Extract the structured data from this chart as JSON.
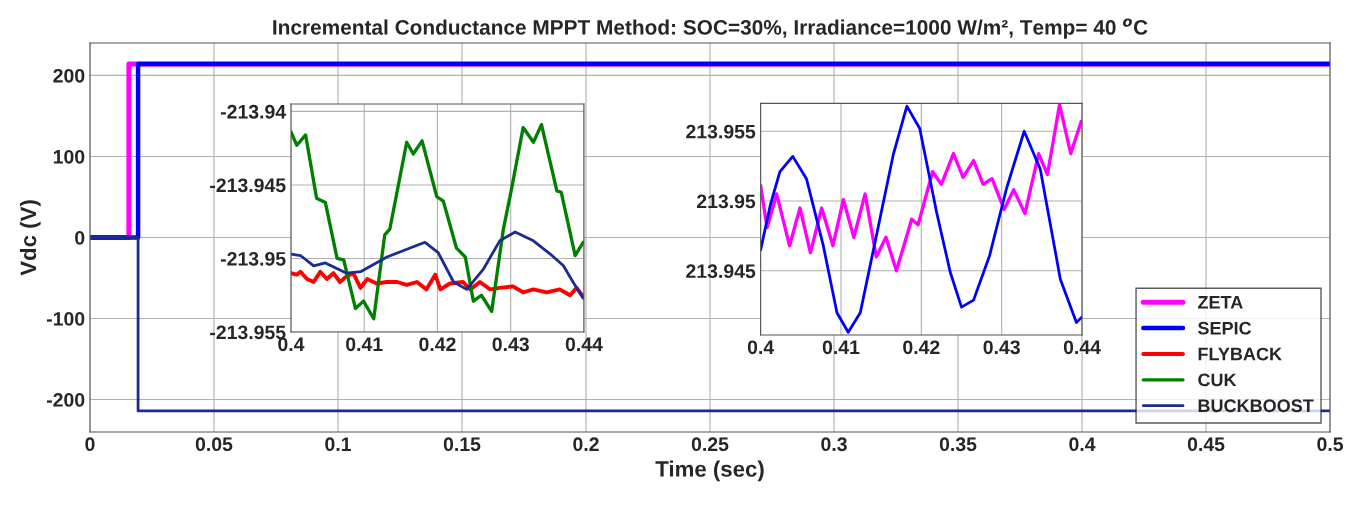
{
  "chart_data": [
    {
      "type": "line",
      "title": "Incremental Conductance MPPT Method: SOC=30%, Irradiance=1000 W/m², Temp= 40 $^{o}$C",
      "xlabel": "Time (sec)",
      "ylabel": "Vdc (V)",
      "xlim": [
        0,
        0.5
      ],
      "xticks": [
        0,
        0.05,
        0.1,
        0.15,
        0.2,
        0.25,
        0.3,
        0.35,
        0.4,
        0.45,
        0.5
      ],
      "ylim": [
        -240,
        240
      ],
      "yticks": [
        -200,
        -100,
        0,
        100,
        200
      ],
      "grid": true,
      "legend": "bottom right",
      "series": [
        {
          "name": "ZETA",
          "color": "#ff00ff",
          "x": [
            0,
            0.0157,
            0.0157,
            0.5
          ],
          "values": [
            0,
            0,
            214,
            214
          ]
        },
        {
          "name": "SEPIC",
          "color": "#0000ff",
          "x": [
            0,
            0.0194,
            0.0194,
            0.5
          ],
          "values": [
            0,
            0,
            214,
            214
          ]
        },
        {
          "name": "FLYBACK",
          "color": "#ff0000",
          "values": [
            null
          ]
        },
        {
          "name": "CUK",
          "color": "#008000",
          "values": [
            null
          ]
        },
        {
          "name": "BUCKBOOST",
          "color": "#1c2a94",
          "x": [
            0,
            0.0194,
            0.0194,
            0.5
          ],
          "values": [
            0,
            0,
            -214,
            -214
          ]
        }
      ]
    },
    {
      "type": "line",
      "xlim": [
        0.4,
        0.44
      ],
      "xticks": [
        0.4,
        0.41,
        0.42,
        0.43,
        0.44
      ],
      "ylim": [
        -213.955,
        -213.9395
      ],
      "yticks": [
        -213.955,
        -213.95,
        -213.945,
        -213.94
      ],
      "grid": true,
      "series": [
        {
          "color": "#ff0000",
          "x": [
            0.4,
            0.4008,
            0.4013,
            0.4022,
            0.4031,
            0.404,
            0.4049,
            0.4058,
            0.4067,
            0.4076,
            0.4085,
            0.4095,
            0.4104,
            0.4117,
            0.4131,
            0.4145,
            0.4158,
            0.4172,
            0.4185,
            0.4197,
            0.4204,
            0.4217,
            0.4235,
            0.4245,
            0.4258,
            0.4272,
            0.4285,
            0.4303,
            0.4317,
            0.4331,
            0.4349,
            0.4367,
            0.4381,
            0.439,
            0.4399
          ],
          "values": [
            -213.951,
            -213.9511,
            -213.9509,
            -213.9514,
            -213.9516,
            -213.9509,
            -213.9514,
            -213.951,
            -213.9516,
            -213.9512,
            -213.951,
            -213.952,
            -213.9514,
            -213.9517,
            -213.9516,
            -213.9516,
            -213.9518,
            -213.9516,
            -213.9521,
            -213.9511,
            -213.9521,
            -213.9517,
            -213.9516,
            -213.9521,
            -213.9516,
            -213.9521,
            -213.952,
            -213.9519,
            -213.9523,
            -213.9521,
            -213.9523,
            -213.9521,
            -213.9525,
            -213.952,
            -213.9526
          ]
        },
        {
          "color": "#008000",
          "x": [
            0.4,
            0.4008,
            0.402,
            0.4035,
            0.4047,
            0.4063,
            0.4072,
            0.4088,
            0.4099,
            0.4113,
            0.4128,
            0.4135,
            0.4158,
            0.4167,
            0.4179,
            0.4199,
            0.4208,
            0.4226,
            0.4238,
            0.4249,
            0.426,
            0.4274,
            0.429,
            0.4301,
            0.4317,
            0.4331,
            0.4342,
            0.4363,
            0.4369,
            0.4388,
            0.4399
          ],
          "values": [
            -213.9414,
            -213.9423,
            -213.9416,
            -213.9459,
            -213.9462,
            -213.95,
            -213.9501,
            -213.9534,
            -213.9529,
            -213.9541,
            -213.9484,
            -213.948,
            -213.9421,
            -213.9429,
            -213.942,
            -213.9458,
            -213.9461,
            -213.9493,
            -213.9499,
            -213.9529,
            -213.9525,
            -213.9536,
            -213.948,
            -213.9453,
            -213.9411,
            -213.9421,
            -213.9409,
            -213.9454,
            -213.9455,
            -213.9498,
            -213.9489
          ]
        },
        {
          "color": "#1c2a94",
          "x": [
            0.4,
            0.4013,
            0.4031,
            0.4047,
            0.4076,
            0.4095,
            0.4131,
            0.4167,
            0.4183,
            0.4201,
            0.4222,
            0.424,
            0.4263,
            0.4285,
            0.4306,
            0.4331,
            0.4354,
            0.4372,
            0.4385,
            0.4399
          ],
          "values": [
            -213.9497,
            -213.9498,
            -213.9505,
            -213.9503,
            -213.951,
            -213.9509,
            -213.9499,
            -213.9492,
            -213.9489,
            -213.9496,
            -213.9516,
            -213.9521,
            -213.9507,
            -213.9488,
            -213.9482,
            -213.9488,
            -213.9497,
            -213.9505,
            -213.9516,
            -213.9527
          ]
        }
      ]
    },
    {
      "type": "line",
      "xlim": [
        0.4,
        0.44
      ],
      "xticks": [
        0.4,
        0.41,
        0.42,
        0.43,
        0.44
      ],
      "ylim": [
        213.9404,
        213.957
      ],
      "yticks": [
        213.945,
        213.95,
        213.955
      ],
      "grid": true,
      "series": [
        {
          "color": "#ff00ff",
          "x": [
            0.4,
            0.4008,
            0.402,
            0.4036,
            0.4049,
            0.4062,
            0.4076,
            0.409,
            0.4103,
            0.4116,
            0.413,
            0.4144,
            0.4156,
            0.4169,
            0.4188,
            0.4196,
            0.4214,
            0.4225,
            0.424,
            0.4252,
            0.4265,
            0.4277,
            0.4288,
            0.4303,
            0.4315,
            0.4329,
            0.4346,
            0.4357,
            0.4372,
            0.4386,
            0.4399
          ],
          "values": [
            213.9511,
            213.9481,
            213.9505,
            213.9468,
            213.9495,
            213.9463,
            213.9495,
            213.9468,
            213.9501,
            213.9474,
            213.9505,
            213.946,
            213.9474,
            213.945,
            213.9487,
            213.9483,
            213.9521,
            213.9512,
            213.9534,
            213.9517,
            213.9529,
            213.9512,
            213.9516,
            213.9494,
            213.9508,
            213.9491,
            213.9534,
            213.9519,
            213.9569,
            213.9534,
            213.9557
          ]
        },
        {
          "color": "#0000ff",
          "x": [
            0.4,
            0.4012,
            0.4024,
            0.404,
            0.4057,
            0.4078,
            0.4095,
            0.4109,
            0.4124,
            0.4144,
            0.4165,
            0.4182,
            0.4198,
            0.4219,
            0.4236,
            0.425,
            0.4265,
            0.4285,
            0.4306,
            0.4328,
            0.4348,
            0.4373,
            0.4393,
            0.44
          ],
          "values": [
            213.9465,
            213.9497,
            213.9521,
            213.9532,
            213.9516,
            213.9468,
            213.942,
            213.9406,
            213.942,
            213.9475,
            213.9533,
            213.9568,
            213.9552,
            213.9492,
            213.9449,
            213.9424,
            213.9429,
            213.9461,
            213.9509,
            213.955,
            213.9523,
            213.9444,
            213.9413,
            213.9417
          ]
        }
      ]
    }
  ]
}
